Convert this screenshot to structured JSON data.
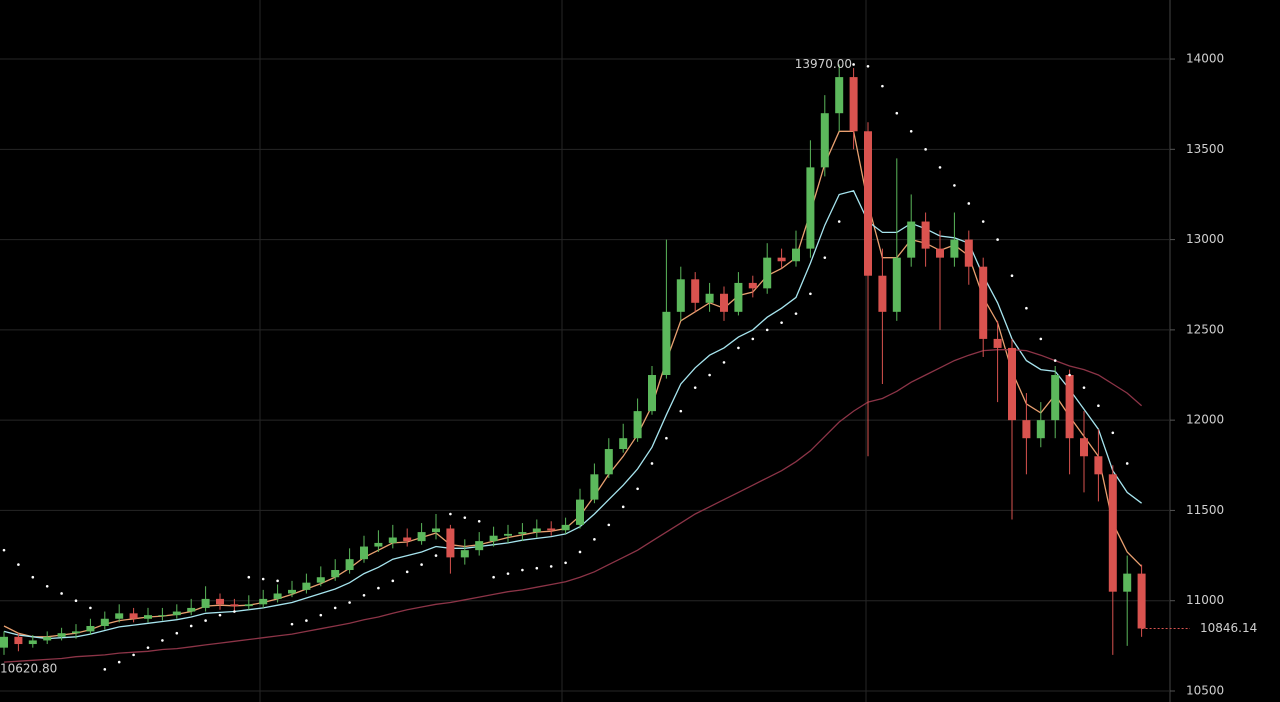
{
  "chart_data": {
    "type": "candlestick",
    "up_color": "#5cb85c",
    "down_color": "#d9534f",
    "ylim": [
      10439,
      14327
    ],
    "yticks": [
      10500,
      11000,
      11500,
      12000,
      12500,
      13000,
      13500,
      14000
    ],
    "grid": true,
    "open": [
      10740,
      10800,
      10760,
      10780,
      10800,
      10820,
      10830,
      10860,
      10900,
      10930,
      10900,
      10920,
      10920,
      10940,
      10960,
      11010,
      10980,
      10970,
      10980,
      11010,
      11040,
      11060,
      11100,
      11130,
      11170,
      11230,
      11300,
      11320,
      11350,
      11330,
      11380,
      11400,
      11240,
      11280,
      11330,
      11360,
      11370,
      11380,
      11400,
      11390,
      11420,
      11560,
      11700,
      11840,
      11900,
      12050,
      12250,
      12600,
      12780,
      12650,
      12700,
      12600,
      12760,
      12730,
      12900,
      12880,
      12950,
      13400,
      13700,
      13900,
      13600,
      12800,
      12600,
      12900,
      13100,
      12950,
      12900,
      13000,
      12850,
      12450,
      12400,
      12000,
      11900,
      12000,
      12250,
      11900,
      11800,
      11700,
      11050,
      11150
    ],
    "high": [
      10830,
      10820,
      10810,
      10830,
      10850,
      10870,
      10900,
      10940,
      10980,
      10960,
      10960,
      10960,
      10980,
      11010,
      11080,
      11040,
      11010,
      11030,
      11060,
      11090,
      11110,
      11150,
      11190,
      11230,
      11290,
      11360,
      11390,
      11420,
      11400,
      11430,
      11480,
      11420,
      11340,
      11380,
      11410,
      11420,
      11430,
      11450,
      11440,
      11460,
      11620,
      11760,
      11900,
      11980,
      12120,
      12300,
      13000,
      12850,
      12820,
      12760,
      12740,
      12820,
      12800,
      12980,
      12950,
      13050,
      13550,
      13800,
      13970,
      13950,
      13650,
      12950,
      13450,
      13250,
      13150,
      13050,
      13150,
      13050,
      12900,
      12550,
      12450,
      12150,
      12100,
      12300,
      12280,
      12050,
      11950,
      11750,
      11250,
      11200
    ],
    "low": [
      10700,
      10720,
      10740,
      10760,
      10780,
      10790,
      10810,
      10840,
      10880,
      10880,
      10880,
      10890,
      10900,
      10920,
      10940,
      10950,
      10940,
      10950,
      10960,
      10990,
      11020,
      11040,
      11080,
      11110,
      11150,
      11210,
      11270,
      11290,
      11300,
      11310,
      11340,
      11150,
      11200,
      11250,
      11300,
      11320,
      11330,
      11350,
      11360,
      11370,
      11400,
      11540,
      11680,
      11820,
      11880,
      12030,
      12230,
      12550,
      12600,
      12600,
      12550,
      12580,
      12680,
      12700,
      12840,
      12850,
      12900,
      13350,
      13600,
      13500,
      11800,
      12200,
      12550,
      12850,
      12850,
      12500,
      12850,
      12750,
      12350,
      12100,
      11450,
      11700,
      11850,
      11900,
      11700,
      11600,
      11550,
      10700,
      10750,
      10800
    ],
    "close": [
      10800,
      10760,
      10780,
      10800,
      10820,
      10830,
      10860,
      10900,
      10930,
      10900,
      10920,
      10920,
      10940,
      10960,
      11010,
      10980,
      10970,
      10980,
      11010,
      11040,
      11060,
      11100,
      11130,
      11170,
      11230,
      11300,
      11320,
      11350,
      11330,
      11380,
      11400,
      11240,
      11280,
      11330,
      11360,
      11370,
      11380,
      11400,
      11390,
      11420,
      11560,
      11700,
      11840,
      11900,
      12050,
      12250,
      12600,
      12780,
      12650,
      12700,
      12600,
      12760,
      12730,
      12900,
      12880,
      12950,
      13400,
      13700,
      13900,
      13600,
      12800,
      12600,
      12900,
      13100,
      12950,
      12900,
      13000,
      12850,
      12450,
      12400,
      12000,
      11900,
      12000,
      12250,
      11900,
      11800,
      11700,
      11050,
      11150,
      10846.14
    ],
    "series": [
      {
        "type": "line",
        "color": "#e8a070",
        "values": [
          10860,
          10820,
          10800,
          10800,
          10810,
          10820,
          10840,
          10870,
          10890,
          10900,
          10910,
          10915,
          10925,
          10940,
          10970,
          10975,
          10972,
          10975,
          10990,
          11010,
          11035,
          11065,
          11095,
          11130,
          11180,
          11240,
          11280,
          11320,
          11325,
          11350,
          11375,
          11310,
          11300,
          11310,
          11330,
          11350,
          11365,
          11380,
          11385,
          11400,
          11470,
          11580,
          11700,
          11800,
          11920,
          12080,
          12330,
          12550,
          12600,
          12650,
          12620,
          12690,
          12710,
          12800,
          12840,
          12900,
          13150,
          13420,
          13600,
          13600,
          13200,
          12900,
          12900,
          13000,
          12980,
          12940,
          12970,
          12910,
          12680,
          12540,
          12270,
          12090,
          12040,
          12140,
          12020,
          11910,
          11800,
          11430,
          11270,
          11190
        ]
      },
      {
        "type": "line",
        "color": "#a6e4ee",
        "values": [
          10830,
          10810,
          10800,
          10790,
          10795,
          10800,
          10815,
          10835,
          10855,
          10865,
          10875,
          10885,
          10895,
          10910,
          10930,
          10935,
          10940,
          10950,
          10960,
          10975,
          10990,
          11015,
          11040,
          11065,
          11100,
          11150,
          11185,
          11230,
          11250,
          11270,
          11300,
          11290,
          11290,
          11300,
          11310,
          11320,
          11335,
          11345,
          11355,
          11370,
          11410,
          11480,
          11560,
          11640,
          11730,
          11850,
          12030,
          12200,
          12290,
          12360,
          12400,
          12460,
          12500,
          12570,
          12620,
          12680,
          12870,
          13080,
          13250,
          13270,
          13100,
          13040,
          13040,
          13090,
          13060,
          13020,
          13010,
          12980,
          12800,
          12650,
          12450,
          12330,
          12280,
          12270,
          12170,
          12060,
          11950,
          11720,
          11600,
          11540
        ]
      },
      {
        "type": "line",
        "color": "#8c3447",
        "values": [
          10660,
          10665,
          10670,
          10675,
          10680,
          10690,
          10695,
          10700,
          10710,
          10715,
          10720,
          10730,
          10735,
          10745,
          10755,
          10765,
          10775,
          10785,
          10795,
          10805,
          10815,
          10830,
          10845,
          10860,
          10875,
          10895,
          10910,
          10930,
          10950,
          10965,
          10980,
          10990,
          11005,
          11020,
          11035,
          11050,
          11060,
          11075,
          11090,
          11105,
          11130,
          11160,
          11200,
          11240,
          11280,
          11330,
          11380,
          11430,
          11480,
          11520,
          11560,
          11600,
          11640,
          11680,
          11720,
          11770,
          11830,
          11910,
          11990,
          12050,
          12100,
          12120,
          12160,
          12210,
          12250,
          12290,
          12330,
          12360,
          12385,
          12390,
          12390,
          12385,
          12360,
          12330,
          12300,
          12280,
          12250,
          12200,
          12150,
          12080
        ]
      },
      {
        "type": "dots",
        "color": "#ffffff",
        "values": [
          11280,
          11200,
          11130,
          11080,
          11040,
          11000,
          10960,
          10620,
          10660,
          10700,
          10740,
          10780,
          10820,
          10860,
          10890,
          10920,
          10940,
          11130,
          11120,
          11110,
          10870,
          10890,
          10920,
          10960,
          10990,
          11030,
          11070,
          11110,
          11160,
          11200,
          11250,
          11480,
          11460,
          11440,
          11130,
          11150,
          11170,
          11180,
          11190,
          11210,
          11270,
          11340,
          11420,
          11520,
          11620,
          11760,
          11900,
          12050,
          12180,
          12250,
          12320,
          12400,
          12450,
          12500,
          12540,
          12590,
          12700,
          12900,
          13100,
          13970,
          13960,
          13850,
          13700,
          13600,
          13500,
          13400,
          13300,
          13200,
          13100,
          13000,
          12800,
          12620,
          12450,
          12330,
          12250,
          12180,
          12080,
          11930,
          11760,
          null
        ]
      }
    ],
    "annotations": [
      {
        "label": "13970.00",
        "value": 13970
      },
      {
        "label": "10620.80",
        "value": 10620.8
      }
    ],
    "last_price": {
      "label": "10846.14",
      "value": 10846.14
    }
  }
}
